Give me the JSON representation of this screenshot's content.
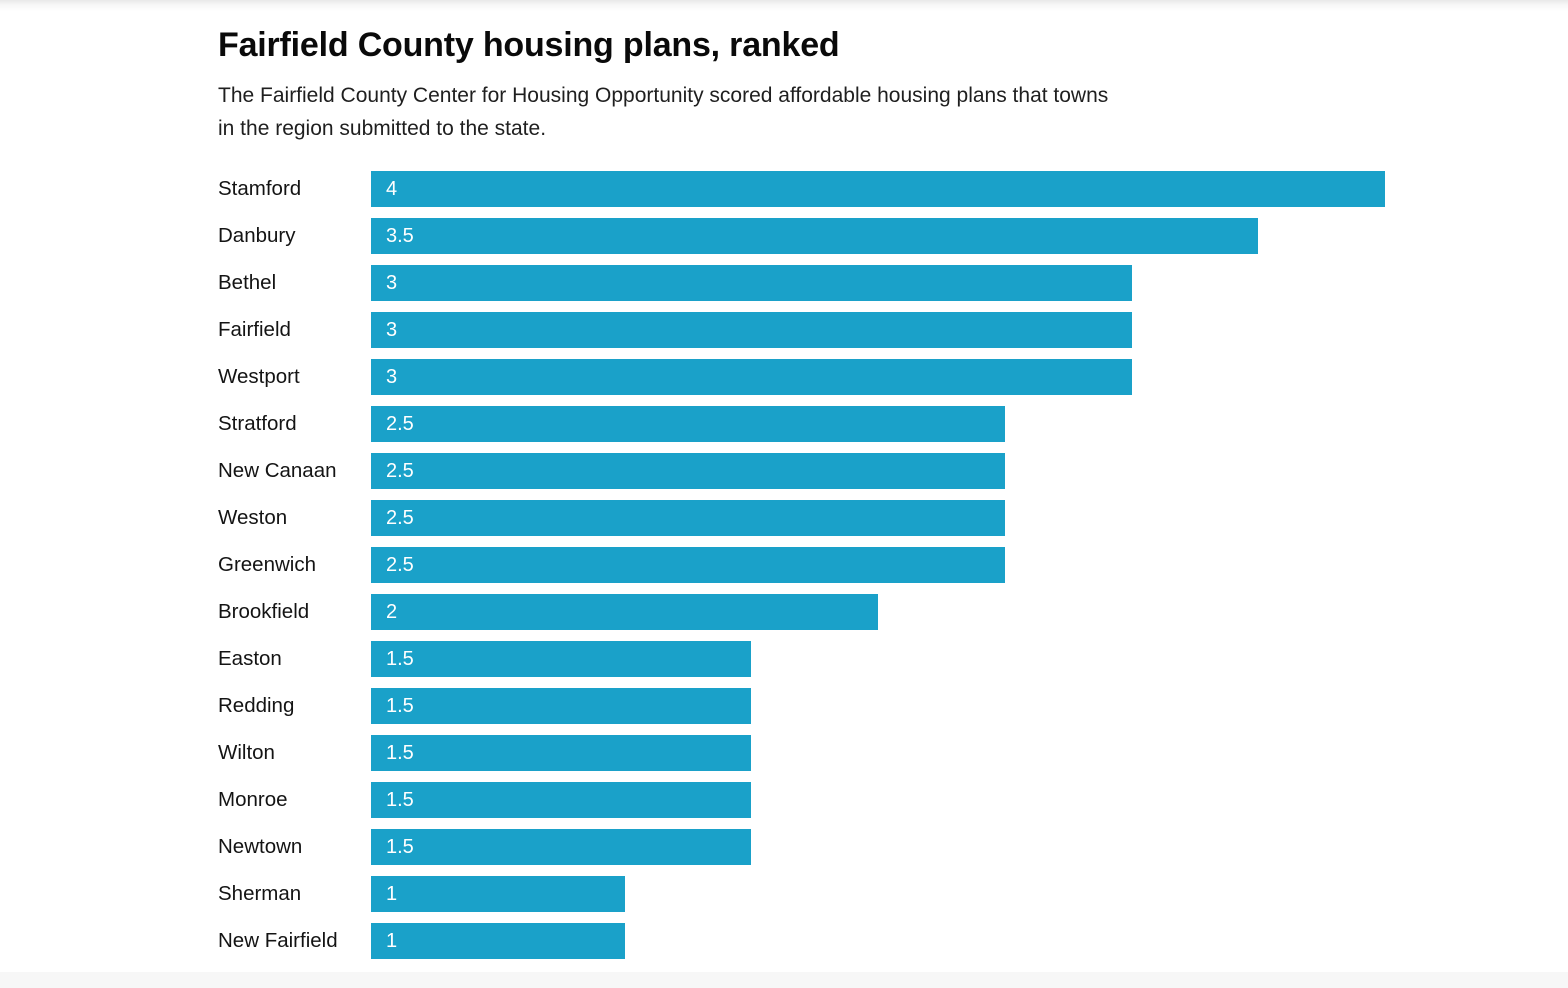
{
  "header": {
    "title": "Fairfield County housing plans, ranked",
    "subtitle_lines": [
      "The Fairfield County Center for Housing Opportunity scored affordable housing plans that towns",
      "in the region submitted to the state."
    ]
  },
  "chart_data": {
    "type": "bar",
    "orientation": "horizontal",
    "title": "Fairfield County housing plans, ranked",
    "subtitle": "The Fairfield County Center for Housing Opportunity scored affordable housing plans that towns in the region submitted to the state.",
    "categories": [
      "Stamford",
      "Danbury",
      "Bethel",
      "Fairfield",
      "Westport",
      "Stratford",
      "New Canaan",
      "Weston",
      "Greenwich",
      "Brookfield",
      "Easton",
      "Redding",
      "Wilton",
      "Monroe",
      "Newtown",
      "Sherman",
      "New Fairfield"
    ],
    "values": [
      4,
      3.5,
      3,
      3,
      3,
      2.5,
      2.5,
      2.5,
      2.5,
      2,
      1.5,
      1.5,
      1.5,
      1.5,
      1.5,
      1,
      1
    ],
    "value_labels": [
      "4",
      "3.5",
      "3",
      "3",
      "3",
      "2.5",
      "2.5",
      "2.5",
      "2.5",
      "2",
      "1.5",
      "1.5",
      "1.5",
      "1.5",
      "1.5",
      "1",
      "1"
    ],
    "xlim": [
      0,
      4
    ],
    "grid": false,
    "legend": false,
    "bar_color": "#1aa1c9",
    "value_label_color": "#ffffff"
  }
}
